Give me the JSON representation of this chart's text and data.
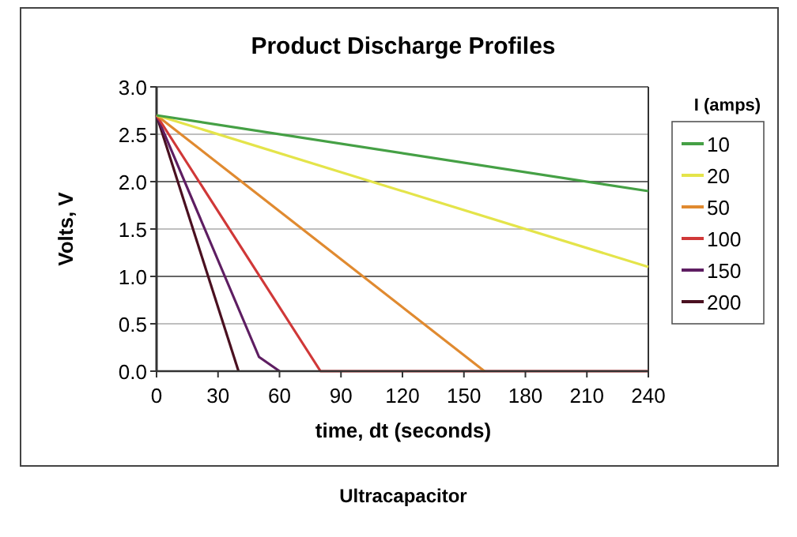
{
  "chart_data": {
    "type": "line",
    "title": "Product Discharge Profiles",
    "xlabel": "time, dt (seconds)",
    "ylabel": "Volts, V",
    "legend_title": "I (amps)",
    "legend": "right",
    "grid": "y",
    "marker": "none",
    "line_style": "solid",
    "xlim": [
      0,
      240
    ],
    "xticks": [
      0,
      30,
      60,
      90,
      120,
      150,
      180,
      210,
      240
    ],
    "ylim": [
      0,
      3
    ],
    "yticks": [
      {
        "value": 0,
        "label": "0.0"
      },
      {
        "value": 0.5,
        "label": "0.5"
      },
      {
        "value": 1,
        "label": "1.0"
      },
      {
        "value": 1.5,
        "label": "1.5"
      },
      {
        "value": 2,
        "label": "2.0"
      },
      {
        "value": 2.5,
        "label": "2.5"
      },
      {
        "value": 3,
        "label": "3.0"
      }
    ],
    "series": [
      {
        "name": "10",
        "color": "#45a045",
        "x": [
          0,
          240
        ],
        "values": [
          2.7,
          1.9
        ]
      },
      {
        "name": "20",
        "color": "#e4e44a",
        "x": [
          0,
          240
        ],
        "values": [
          2.7,
          1.1
        ]
      },
      {
        "name": "50",
        "color": "#e08a30",
        "x": [
          0,
          160
        ],
        "values": [
          2.7,
          0
        ]
      },
      {
        "name": "100",
        "color": "#d03838",
        "x": [
          0,
          80,
          240
        ],
        "values": [
          2.7,
          0,
          0
        ]
      },
      {
        "name": "150",
        "color": "#5e1e62",
        "x": [
          0,
          50,
          60
        ],
        "values": [
          2.7,
          0.15,
          0
        ]
      },
      {
        "name": "200",
        "color": "#4a1020",
        "x": [
          0,
          40
        ],
        "values": [
          2.7,
          0
        ]
      }
    ],
    "annotations": [
      "Ultracapacitor"
    ]
  }
}
